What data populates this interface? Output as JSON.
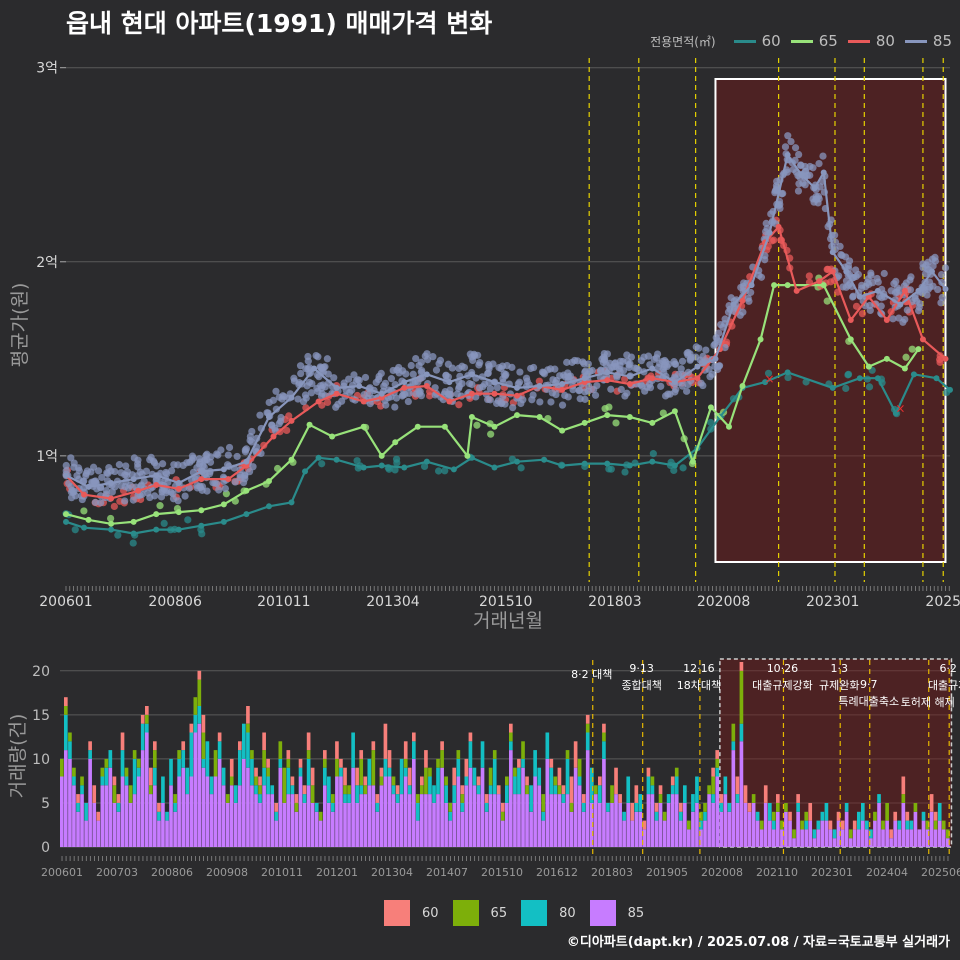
{
  "title": "읍내 현대 아파트(1991) 매매가격 변화",
  "legend": {
    "title": "전용면적(㎡)",
    "items": [
      {
        "label": "60",
        "color": "#2a8b8b"
      },
      {
        "label": "65",
        "color": "#98e27a"
      },
      {
        "label": "80",
        "color": "#e85a5a"
      },
      {
        "label": "85",
        "color": "#8896bd"
      }
    ]
  },
  "bottom_legend": {
    "items": [
      {
        "label": "60",
        "color": "#f77f7a"
      },
      {
        "label": "65",
        "color": "#7daf0a"
      },
      {
        "label": "80",
        "color": "#13bfc4"
      },
      {
        "label": "85",
        "color": "#c77cff"
      }
    ]
  },
  "credit": "©디아파트(dapt.kr) / 2025.07.08 / 자료=국토교통부 실거래가",
  "chart_data": [
    {
      "type": "line",
      "title": "읍내 현대 아파트(1991) 매매가격 변화",
      "xlabel": "거래년월",
      "ylabel": "평균가(원)",
      "x_ticks": [
        "200601",
        "200806",
        "201011",
        "201304",
        "201510",
        "201803",
        "202008",
        "202301",
        "2025"
      ],
      "y_ticks": [
        {
          "v": 1,
          "label": "1억"
        },
        {
          "v": 2,
          "label": "2억"
        },
        {
          "v": 3,
          "label": "3억"
        }
      ],
      "xlim": [
        2006.0,
        2025.6
      ],
      "ylim": [
        0.35,
        3.05
      ],
      "highlight_range": [
        2020.4,
        2025.5
      ],
      "policy_lines": [
        2017.6,
        2018.7,
        2019.96,
        2021.8,
        2023.05,
        2023.7,
        2025.0,
        2025.45
      ],
      "series": [
        {
          "name": "60",
          "color": "#2a8b8b",
          "points": [
            [
              2006.0,
              0.66
            ],
            [
              2006.4,
              0.63
            ],
            [
              2007.0,
              0.62
            ],
            [
              2007.5,
              0.6
            ],
            [
              2008.0,
              0.62
            ],
            [
              2008.5,
              0.62
            ],
            [
              2009.0,
              0.64
            ],
            [
              2009.5,
              0.66
            ],
            [
              2010.0,
              0.7
            ],
            [
              2010.5,
              0.74
            ],
            [
              2011.0,
              0.76
            ],
            [
              2011.3,
              0.92
            ],
            [
              2011.6,
              0.99
            ],
            [
              2012.0,
              0.98
            ],
            [
              2012.6,
              0.94
            ],
            [
              2013.0,
              0.95
            ],
            [
              2013.5,
              0.94
            ],
            [
              2014.0,
              0.97
            ],
            [
              2014.6,
              0.93
            ],
            [
              2015.0,
              0.99
            ],
            [
              2015.5,
              0.94
            ],
            [
              2016.0,
              0.97
            ],
            [
              2016.6,
              0.98
            ],
            [
              2017.0,
              0.95
            ],
            [
              2017.5,
              0.96
            ],
            [
              2018.0,
              0.96
            ],
            [
              2018.5,
              0.95
            ],
            [
              2019.0,
              0.97
            ],
            [
              2019.5,
              0.95
            ],
            [
              2020.0,
              1.04
            ],
            [
              2020.5,
              1.2
            ],
            [
              2021.0,
              1.35
            ],
            [
              2021.5,
              1.38
            ],
            [
              2022.0,
              1.43
            ],
            [
              2023.0,
              1.35
            ],
            [
              2023.6,
              1.4
            ],
            [
              2024.0,
              1.4
            ],
            [
              2024.4,
              1.22
            ],
            [
              2024.8,
              1.42
            ],
            [
              2025.3,
              1.4
            ],
            [
              2025.6,
              1.34
            ]
          ]
        },
        {
          "name": "65",
          "color": "#98e27a",
          "points": [
            [
              2006.0,
              0.7
            ],
            [
              2006.5,
              0.67
            ],
            [
              2007.0,
              0.65
            ],
            [
              2007.5,
              0.66
            ],
            [
              2008.0,
              0.7
            ],
            [
              2008.5,
              0.71
            ],
            [
              2009.0,
              0.72
            ],
            [
              2009.5,
              0.75
            ],
            [
              2010.0,
              0.82
            ],
            [
              2010.5,
              0.87
            ],
            [
              2011.0,
              0.98
            ],
            [
              2011.4,
              1.16
            ],
            [
              2011.9,
              1.1
            ],
            [
              2012.6,
              1.15
            ],
            [
              2013.0,
              1.0
            ],
            [
              2013.3,
              1.07
            ],
            [
              2013.8,
              1.15
            ],
            [
              2014.4,
              1.15
            ],
            [
              2014.9,
              1.0
            ],
            [
              2015.0,
              1.2
            ],
            [
              2015.5,
              1.15
            ],
            [
              2016.0,
              1.21
            ],
            [
              2016.5,
              1.2
            ],
            [
              2017.0,
              1.13
            ],
            [
              2017.5,
              1.17
            ],
            [
              2018.0,
              1.21
            ],
            [
              2018.5,
              1.2
            ],
            [
              2019.0,
              1.17
            ],
            [
              2019.5,
              1.23
            ],
            [
              2019.9,
              0.97
            ],
            [
              2020.3,
              1.25
            ],
            [
              2020.7,
              1.15
            ],
            [
              2021.0,
              1.36
            ],
            [
              2021.4,
              1.6
            ],
            [
              2021.7,
              1.88
            ],
            [
              2022.0,
              1.88
            ],
            [
              2022.8,
              1.88
            ],
            [
              2023.4,
              1.6
            ],
            [
              2023.8,
              1.46
            ],
            [
              2024.2,
              1.5
            ],
            [
              2024.6,
              1.45
            ],
            [
              2024.9,
              1.55
            ]
          ]
        },
        {
          "name": "80",
          "color": "#e85a5a",
          "points": [
            [
              2006.0,
              0.9
            ],
            [
              2006.4,
              0.8
            ],
            [
              2007.0,
              0.78
            ],
            [
              2007.6,
              0.82
            ],
            [
              2008.0,
              0.85
            ],
            [
              2008.5,
              0.83
            ],
            [
              2009.0,
              0.88
            ],
            [
              2009.6,
              0.88
            ],
            [
              2010.0,
              0.95
            ],
            [
              2010.6,
              1.1
            ],
            [
              2011.0,
              1.18
            ],
            [
              2011.6,
              1.28
            ],
            [
              2012.0,
              1.32
            ],
            [
              2012.6,
              1.28
            ],
            [
              2013.0,
              1.3
            ],
            [
              2013.5,
              1.35
            ],
            [
              2014.0,
              1.36
            ],
            [
              2014.5,
              1.28
            ],
            [
              2015.0,
              1.32
            ],
            [
              2015.5,
              1.32
            ],
            [
              2016.0,
              1.31
            ],
            [
              2016.5,
              1.36
            ],
            [
              2017.0,
              1.34
            ],
            [
              2017.5,
              1.38
            ],
            [
              2018.0,
              1.39
            ],
            [
              2018.5,
              1.37
            ],
            [
              2019.0,
              1.4
            ],
            [
              2019.5,
              1.38
            ],
            [
              2020.0,
              1.4
            ],
            [
              2020.5,
              1.55
            ],
            [
              2021.0,
              1.8
            ],
            [
              2021.5,
              2.1
            ],
            [
              2021.8,
              2.18
            ],
            [
              2022.2,
              1.85
            ],
            [
              2022.7,
              1.9
            ],
            [
              2023.0,
              1.95
            ],
            [
              2023.4,
              1.7
            ],
            [
              2023.8,
              1.82
            ],
            [
              2024.2,
              1.7
            ],
            [
              2024.6,
              1.85
            ],
            [
              2025.0,
              1.6
            ],
            [
              2025.5,
              1.5
            ]
          ]
        },
        {
          "name": "85",
          "color": "#8896bd",
          "points": [
            [
              2006.0,
              0.9
            ],
            [
              2006.5,
              0.84
            ],
            [
              2007.0,
              0.86
            ],
            [
              2007.5,
              0.88
            ],
            [
              2008.0,
              0.9
            ],
            [
              2008.5,
              0.86
            ],
            [
              2009.0,
              0.92
            ],
            [
              2009.5,
              0.93
            ],
            [
              2010.0,
              0.97
            ],
            [
              2010.5,
              1.2
            ],
            [
              2011.0,
              1.3
            ],
            [
              2011.5,
              1.45
            ],
            [
              2012.0,
              1.35
            ],
            [
              2012.5,
              1.36
            ],
            [
              2013.0,
              1.32
            ],
            [
              2013.5,
              1.38
            ],
            [
              2014.0,
              1.42
            ],
            [
              2014.5,
              1.38
            ],
            [
              2015.0,
              1.42
            ],
            [
              2015.5,
              1.38
            ],
            [
              2016.0,
              1.35
            ],
            [
              2016.5,
              1.36
            ],
            [
              2017.0,
              1.37
            ],
            [
              2017.5,
              1.4
            ],
            [
              2018.0,
              1.43
            ],
            [
              2018.5,
              1.41
            ],
            [
              2019.0,
              1.45
            ],
            [
              2019.5,
              1.38
            ],
            [
              2020.0,
              1.46
            ],
            [
              2020.4,
              1.5
            ],
            [
              2020.8,
              1.78
            ],
            [
              2021.2,
              1.88
            ],
            [
              2021.6,
              2.15
            ],
            [
              2022.0,
              2.55
            ],
            [
              2022.3,
              2.45
            ],
            [
              2022.6,
              2.38
            ],
            [
              2022.8,
              2.46
            ],
            [
              2023.0,
              2.05
            ],
            [
              2023.3,
              1.95
            ],
            [
              2023.6,
              1.82
            ],
            [
              2024.0,
              1.85
            ],
            [
              2024.5,
              1.78
            ],
            [
              2024.9,
              1.85
            ],
            [
              2025.2,
              1.95
            ],
            [
              2025.5,
              1.86
            ]
          ]
        }
      ]
    },
    {
      "type": "bar",
      "ylabel": "거래량(건)",
      "stacked": true,
      "series_names": [
        "60",
        "65",
        "80",
        "85"
      ],
      "x_ticks": [
        "200601",
        "200703",
        "200806",
        "200908",
        "201011",
        "201201",
        "201304",
        "201407",
        "201510",
        "201612",
        "201803",
        "201905",
        "202008",
        "202110",
        "202301",
        "202404",
        "202506"
      ],
      "y_ticks": [
        0,
        5,
        10,
        15,
        20
      ],
      "ylim": [
        0,
        21
      ],
      "highlight_range": [
        2020.4,
        2025.5
      ],
      "annotations": [
        {
          "x": 2017.6,
          "lines": [
            "8·2 대책"
          ]
        },
        {
          "x": 2018.7,
          "lines": [
            "9·13",
            "종합대책"
          ]
        },
        {
          "x": 2019.96,
          "lines": [
            "12·16",
            "18차대책"
          ]
        },
        {
          "x": 2021.8,
          "lines": [
            "10·26",
            "대출규제강화"
          ]
        },
        {
          "x": 2023.05,
          "lines": [
            "1·3",
            "규제완화"
          ]
        },
        {
          "x": 2023.7,
          "lines": [
            "9·7",
            "특례대출축소"
          ]
        },
        {
          "x": 2025.0,
          "lines": [
            "토허제 해제"
          ]
        },
        {
          "x": 2025.45,
          "lines": [
            "6·2",
            "대출규제"
          ]
        }
      ],
      "monthly_totals": [
        10,
        17,
        13,
        9,
        6,
        8,
        5,
        12,
        7,
        4,
        9,
        10,
        11,
        8,
        6,
        13,
        9,
        7,
        11,
        10,
        15,
        16,
        9,
        12,
        5,
        8,
        4,
        10,
        6,
        11,
        12,
        9,
        14,
        17,
        20,
        15,
        12,
        8,
        11,
        13,
        9,
        6,
        10,
        7,
        12,
        14,
        16,
        11,
        9,
        8,
        13,
        10,
        7,
        5,
        12,
        9,
        11,
        8,
        6,
        10,
        7,
        13,
        9,
        5,
        4,
        11,
        8,
        6,
        12,
        10,
        9,
        7,
        13,
        9,
        11,
        8,
        10,
        12,
        6,
        9,
        14,
        11,
        8,
        7,
        10,
        12,
        9,
        13,
        6,
        8,
        11,
        9,
        7,
        10,
        12,
        8,
        5,
        9,
        11,
        7,
        10,
        13,
        9,
        8,
        12,
        6,
        9,
        11,
        7,
        5,
        8,
        14,
        9,
        10,
        12,
        8,
        7,
        11,
        9,
        6,
        13,
        10,
        8,
        9,
        7,
        11,
        8,
        12,
        10,
        6,
        15,
        9,
        7,
        8,
        14,
        5,
        7,
        9,
        6,
        4,
        8,
        5,
        7,
        6,
        3,
        9,
        8,
        5,
        7,
        4,
        6,
        8,
        9,
        5,
        7,
        3,
        6,
        8,
        4,
        5,
        7,
        9,
        11,
        6,
        8,
        5,
        14,
        8,
        21,
        7,
        5,
        6,
        4,
        3,
        7,
        5,
        4,
        6,
        3,
        5,
        4,
        2,
        6,
        3,
        4,
        5,
        2,
        3,
        4,
        5,
        3,
        2,
        4,
        3,
        5,
        2,
        3,
        4,
        5,
        3,
        2,
        4,
        6,
        3,
        5,
        2,
        4,
        3,
        8,
        4,
        3,
        5,
        2,
        4,
        3,
        6,
        4,
        5,
        3,
        2
      ]
    }
  ]
}
